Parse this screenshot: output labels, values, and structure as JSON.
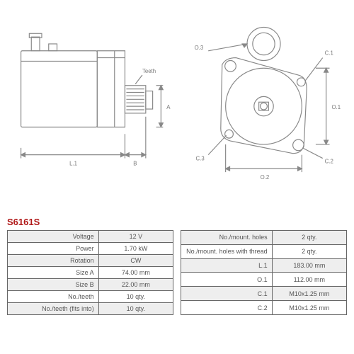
{
  "product_code": "S6161S",
  "colors": {
    "code": "#b01818",
    "table_border": "#666666",
    "row_alt": "#eeeeee",
    "row_base": "#ffffff",
    "text": "#555555",
    "drawing": "#888888"
  },
  "diagram_labels": {
    "side": {
      "L1": "L.1",
      "B": "B",
      "A": "A",
      "Teeth": "Teeth"
    },
    "front": {
      "O1": "O.1",
      "O2": "O.2",
      "O3": "O.3",
      "C1": "C.1",
      "C2": "C.2",
      "C3": "C.3"
    }
  },
  "specs_left": [
    {
      "label": "Voltage",
      "value": "12 V"
    },
    {
      "label": "Power",
      "value": "1.70 kW"
    },
    {
      "label": "Rotation",
      "value": "CW"
    },
    {
      "label": "Size A",
      "value": "74.00 mm"
    },
    {
      "label": "Size B",
      "value": "22.00 mm"
    },
    {
      "label": "No./teeth",
      "value": "10 qty."
    },
    {
      "label": "No./teeth (fits into)",
      "value": "10 qty."
    }
  ],
  "specs_right": [
    {
      "label": "No./mount. holes",
      "value": "2 qty."
    },
    {
      "label": "No./mount. holes with thread",
      "value": "2 qty."
    },
    {
      "label": "L.1",
      "value": "183.00 mm"
    },
    {
      "label": "O.1",
      "value": "112.00 mm"
    },
    {
      "label": "C.1",
      "value": "M10x1.25 mm"
    },
    {
      "label": "C.2",
      "value": "M10x1.25 mm"
    }
  ]
}
